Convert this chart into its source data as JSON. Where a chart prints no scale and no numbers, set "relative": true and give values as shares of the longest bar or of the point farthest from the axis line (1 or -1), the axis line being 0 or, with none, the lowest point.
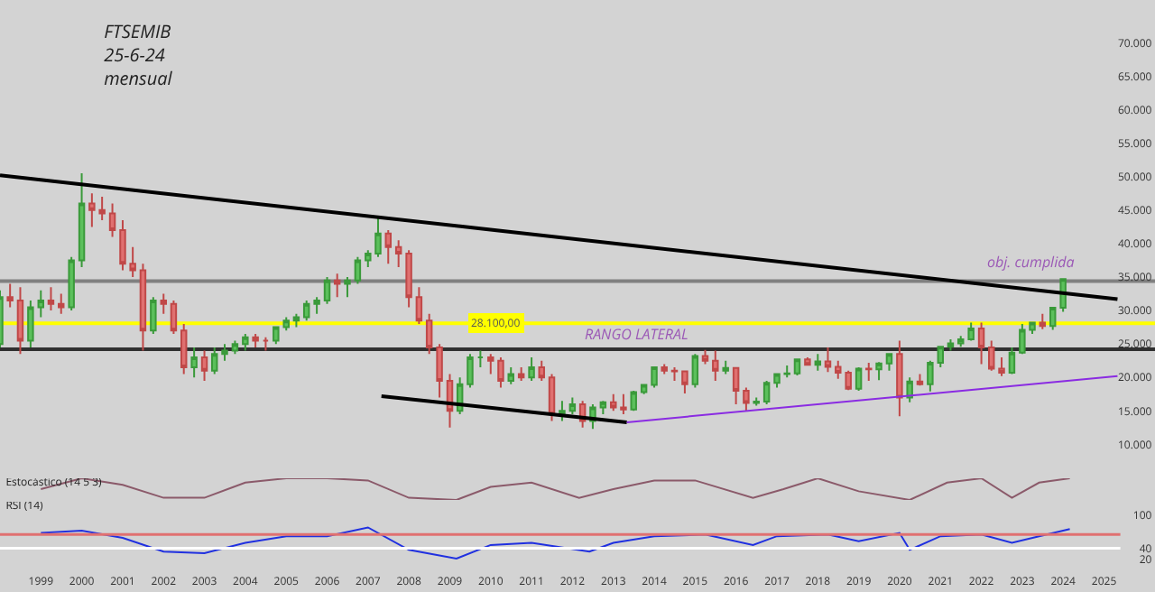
{
  "chart_data": [
    {
      "type": "candlestick",
      "title": "FTSEMIB\n25-6-24\nmensual",
      "xlim": [
        "1998-01-01",
        "2026-04-01"
      ],
      "xticks": [
        "1999",
        "2000",
        "2001",
        "2002",
        "2003",
        "2004",
        "2005",
        "2006",
        "2007",
        "2008",
        "2009",
        "2010",
        "2011",
        "2012",
        "2013",
        "2014",
        "2015",
        "2016",
        "2017",
        "2018",
        "2019",
        "2020",
        "2021",
        "2022",
        "2023",
        "2024",
        "2025"
      ],
      "ylim": [
        5200,
        76400
      ],
      "yticks": [
        {
          "value": 10000,
          "label": "10.000"
        },
        {
          "value": 15000,
          "label": "15.000"
        },
        {
          "value": 20000,
          "label": "20.000"
        },
        {
          "value": 25000,
          "label": "25.000"
        },
        {
          "value": 30000,
          "label": "30.000"
        },
        {
          "value": 35000,
          "label": "35.000"
        },
        {
          "value": 40000,
          "label": "40.000"
        },
        {
          "value": 45000,
          "label": "45.000"
        },
        {
          "value": 50000,
          "label": "50.000"
        },
        {
          "value": 55000,
          "label": "55.000"
        },
        {
          "value": 60000,
          "label": "60.000"
        },
        {
          "value": 65000,
          "label": "65.000"
        },
        {
          "value": 70000,
          "label": "70.000"
        }
      ],
      "tick_labels": "y",
      "ref_lines": [
        {
          "axis": "y",
          "value": 28100,
          "label": "28.100,00",
          "color": "#ffff00"
        },
        {
          "axis": "y",
          "value": 34400,
          "color": "#808080"
        },
        {
          "axis": "y",
          "value": 24200,
          "color": "#303030"
        }
      ],
      "annotations": [
        "RANGO LATERAL",
        "obj. cumplida"
      ],
      "series": [
        {
          "type": "line",
          "color": "#000000",
          "x": [
            "1998-01",
            "2025-05"
          ],
          "values": [
            50200,
            31700
          ]
        },
        {
          "type": "line",
          "color": "#000000",
          "x": [
            "2007-05",
            "2013-05"
          ],
          "values": [
            17200,
            13300
          ]
        },
        {
          "type": "line",
          "color": "#8a2be2",
          "x": [
            "2013-05",
            "2025-05"
          ],
          "values": [
            13300,
            20200
          ]
        },
        {
          "x": [
            "1998-01",
            "1998-04",
            "1998-07",
            "1998-10",
            "1999-01",
            "1999-04",
            "1999-07",
            "1999-10",
            "2000-01",
            "2000-04",
            "2000-07",
            "2000-10",
            "2001-01",
            "2001-04",
            "2001-07",
            "2001-10",
            "2002-01",
            "2002-04",
            "2002-07",
            "2002-10",
            "2003-01",
            "2003-04",
            "2003-07",
            "2003-10",
            "2004-01",
            "2004-04",
            "2004-07",
            "2004-10",
            "2005-01",
            "2005-04",
            "2005-07",
            "2005-10",
            "2006-01",
            "2006-04",
            "2006-07",
            "2006-10",
            "2007-01",
            "2007-04",
            "2007-07",
            "2007-10",
            "2008-01",
            "2008-04",
            "2008-07",
            "2008-10",
            "2009-01",
            "2009-04",
            "2009-07",
            "2009-10",
            "2010-01",
            "2010-04",
            "2010-07",
            "2010-10",
            "2011-01",
            "2011-04",
            "2011-07",
            "2011-10",
            "2012-01",
            "2012-04",
            "2012-07",
            "2012-10",
            "2013-01",
            "2013-04",
            "2013-07",
            "2013-10",
            "2014-01",
            "2014-04",
            "2014-07",
            "2014-10",
            "2015-01",
            "2015-04",
            "2015-07",
            "2015-10",
            "2016-01",
            "2016-04",
            "2016-07",
            "2016-10",
            "2017-01",
            "2017-04",
            "2017-07",
            "2017-10",
            "2018-01",
            "2018-04",
            "2018-07",
            "2018-10",
            "2019-01",
            "2019-04",
            "2019-07",
            "2019-10",
            "2020-01",
            "2020-04",
            "2020-07",
            "2020-10",
            "2021-01",
            "2021-04",
            "2021-07",
            "2021-10",
            "2022-01",
            "2022-04",
            "2022-07",
            "2022-10",
            "2023-01",
            "2023-04",
            "2023-07",
            "2023-10",
            "2024-01"
          ],
          "ohlc": [
            [
              25000,
              33000,
              24500,
              32000
            ],
            [
              32000,
              34000,
              30500,
              31500
            ],
            [
              31500,
              33500,
              23500,
              25500
            ],
            [
              25500,
              31500,
              24500,
              30500
            ],
            [
              30500,
              33000,
              29000,
              31500
            ],
            [
              31500,
              33500,
              30000,
              31000
            ],
            [
              31000,
              32500,
              29500,
              30500
            ],
            [
              30500,
              38000,
              30000,
              37500
            ],
            [
              37500,
              50500,
              36500,
              46000
            ],
            [
              46000,
              47500,
              42500,
              45000
            ],
            [
              45000,
              47000,
              43500,
              44500
            ],
            [
              44500,
              46000,
              41000,
              42000
            ],
            [
              42000,
              43500,
              36000,
              37000
            ],
            [
              37000,
              39500,
              35000,
              36000
            ],
            [
              36000,
              37000,
              24000,
              27000
            ],
            [
              27000,
              32000,
              26500,
              31500
            ],
            [
              31500,
              32500,
              29500,
              31000
            ],
            [
              31000,
              31500,
              26500,
              27000
            ],
            [
              27000,
              28000,
              20500,
              21500
            ],
            [
              21500,
              24500,
              20000,
              23000
            ],
            [
              23000,
              24000,
              19500,
              21000
            ],
            [
              21000,
              24500,
              20500,
              23500
            ],
            [
              23500,
              25000,
              22500,
              24000
            ],
            [
              24000,
              25500,
              23500,
              25000
            ],
            [
              25000,
              26500,
              24000,
              26000
            ],
            [
              26000,
              26500,
              24500,
              25500
            ],
            [
              25500,
              26000,
              24000,
              25500
            ],
            [
              25500,
              27500,
              25000,
              27500
            ],
            [
              27500,
              29000,
              27000,
              28500
            ],
            [
              28500,
              29500,
              27500,
              29000
            ],
            [
              29000,
              31500,
              28500,
              31000
            ],
            [
              31000,
              32000,
              29500,
              31500
            ],
            [
              31500,
              35000,
              31000,
              34500
            ],
            [
              34500,
              35500,
              32000,
              34000
            ],
            [
              34000,
              35000,
              32000,
              34500
            ],
            [
              34500,
              38000,
              34000,
              37500
            ],
            [
              37500,
              39000,
              36500,
              38500
            ],
            [
              38500,
              44000,
              38000,
              41500
            ],
            [
              41500,
              42000,
              37000,
              39500
            ],
            [
              39500,
              40500,
              36500,
              38500
            ],
            [
              38500,
              39000,
              30500,
              32000
            ],
            [
              32000,
              33500,
              28000,
              28500
            ],
            [
              28500,
              29500,
              23500,
              24500
            ],
            [
              24500,
              25000,
              17000,
              19500
            ],
            [
              19500,
              20500,
              12500,
              15000
            ],
            [
              15000,
              20000,
              14500,
              19000
            ],
            [
              19000,
              23500,
              18500,
              23000
            ],
            [
              23000,
              24000,
              21500,
              23000
            ],
            [
              23000,
              23500,
              20500,
              22500
            ],
            [
              22500,
              23000,
              18500,
              19500
            ],
            [
              19500,
              21500,
              19000,
              20500
            ],
            [
              20500,
              21500,
              19500,
              20000
            ],
            [
              20000,
              23000,
              19500,
              21500
            ],
            [
              21500,
              22500,
              19500,
              20000
            ],
            [
              20000,
              20500,
              13500,
              14500
            ],
            [
              14500,
              16500,
              13500,
              15000
            ],
            [
              15000,
              17000,
              14500,
              16000
            ],
            [
              16000,
              16500,
              12500,
              13500
            ],
            [
              13500,
              16000,
              12300,
              15500
            ],
            [
              15500,
              16500,
              14500,
              16300
            ],
            [
              16300,
              17500,
              15000,
              15500
            ],
            [
              15500,
              17500,
              14500,
              15200
            ],
            [
              15200,
              18000,
              15000,
              17800
            ],
            [
              17800,
              19000,
              17500,
              18900
            ],
            [
              18900,
              21500,
              18500,
              21500
            ],
            [
              21500,
              22000,
              20500,
              21000
            ],
            [
              21000,
              21500,
              19500,
              20900
            ],
            [
              20900,
              21000,
              17600,
              19000
            ],
            [
              19000,
              23500,
              18500,
              23200
            ],
            [
              23200,
              24100,
              22000,
              22500
            ],
            [
              22500,
              24000,
              19500,
              21000
            ],
            [
              21000,
              22500,
              20500,
              21400
            ],
            [
              21400,
              21500,
              16000,
              18000
            ],
            [
              18000,
              18500,
              15000,
              16200
            ],
            [
              16200,
              17000,
              15800,
              16400
            ],
            [
              16400,
              19500,
              16000,
              19200
            ],
            [
              19200,
              20500,
              18500,
              20500
            ],
            [
              20500,
              21800,
              20000,
              20600
            ],
            [
              20600,
              22700,
              20300,
              22700
            ],
            [
              22700,
              23000,
              21800,
              21900
            ],
            [
              21900,
              23500,
              21000,
              22400
            ],
            [
              22400,
              24500,
              20800,
              21600
            ],
            [
              21600,
              22500,
              19800,
              20700
            ],
            [
              20700,
              21000,
              18100,
              18300
            ],
            [
              18300,
              21500,
              18000,
              21300
            ],
            [
              21300,
              22200,
              19500,
              21200
            ],
            [
              21200,
              22300,
              19600,
              22100
            ],
            [
              22100,
              23500,
              21000,
              23500
            ],
            [
              23500,
              25500,
              14200,
              17000
            ],
            [
              17000,
              20000,
              16300,
              19400
            ],
            [
              19400,
              20500,
              18800,
              19000
            ],
            [
              19000,
              22500,
              17900,
              22200
            ],
            [
              22200,
              24700,
              21500,
              24600
            ],
            [
              24600,
              25700,
              24000,
              25100
            ],
            [
              25100,
              26200,
              24600,
              25700
            ],
            [
              25700,
              28200,
              25500,
              27300
            ],
            [
              27300,
              28200,
              22000,
              24500
            ],
            [
              24500,
              25500,
              21000,
              21300
            ],
            [
              21300,
              23000,
              20200,
              20700
            ],
            [
              20700,
              24500,
              20500,
              23700
            ],
            [
              23700,
              28000,
              23500,
              27100
            ],
            [
              27100,
              28300,
              26500,
              28200
            ],
            [
              28200,
              29500,
              27200,
              27700
            ],
            [
              27700,
              30500,
              27100,
              30400
            ],
            [
              30400,
              34800,
              29800,
              34700
            ]
          ]
        }
      ]
    },
    {
      "type": "line",
      "title": "Estocástico (14 5 3)",
      "relative": true,
      "tick_labels": false,
      "xlim": [
        "1998-01-01",
        "2026-04-01"
      ],
      "series": [
        {
          "color": "#8b5a6a",
          "x": [
            "1999-01",
            "2000-01",
            "2001-01",
            "2002-01",
            "2003-01",
            "2004-01",
            "2005-01",
            "2006-01",
            "2007-01",
            "2008-01",
            "2009-03",
            "2010-01",
            "2011-01",
            "2012-03",
            "2013-01",
            "2014-01",
            "2015-01",
            "2016-06",
            "2017-03",
            "2018-01",
            "2019-01",
            "2020-04",
            "2021-03",
            "2022-01",
            "2022-10",
            "2023-06",
            "2024-03"
          ],
          "values": [
            0.5,
            1,
            0.7,
            0.1,
            0.1,
            0.8,
            1,
            1,
            0.9,
            0.1,
            0,
            0.6,
            0.8,
            0.1,
            0.5,
            0.9,
            0.9,
            0.1,
            0.5,
            1,
            0.4,
            0,
            0.8,
            1,
            0.1,
            0.8,
            1
          ]
        }
      ]
    },
    {
      "type": "line",
      "title": "RSI (14)",
      "xlim": [
        "1998-01-01",
        "2026-04-01"
      ],
      "ylim": [
        -40,
        125
      ],
      "yticks": [
        20,
        40,
        100
      ],
      "xticks": [
        "1999",
        "2000",
        "2001",
        "2002",
        "2003",
        "2004",
        "2005",
        "2006",
        "2007",
        "2008",
        "2009",
        "2010",
        "2011",
        "2012",
        "2013",
        "2014",
        "2015",
        "2016",
        "2017",
        "2018",
        "2019",
        "2020",
        "2021",
        "2022",
        "2023",
        "2024",
        "2025"
      ],
      "ref_lines": [
        {
          "axis": "y",
          "value": 65,
          "color": "#e07070"
        },
        {
          "axis": "y",
          "value": 40,
          "color": "#ffffff"
        }
      ],
      "series": [
        {
          "color": "#2030e0",
          "x": [
            "1999-01",
            "2000-01",
            "2001-01",
            "2002-01",
            "2003-01",
            "2004-01",
            "2005-01",
            "2006-01",
            "2007-01",
            "2008-01",
            "2009-03",
            "2010-01",
            "2011-01",
            "2012-06",
            "2013-01",
            "2014-01",
            "2015-04",
            "2016-06",
            "2017-01",
            "2018-04",
            "2019-01",
            "2020-01",
            "2020-04",
            "2021-01",
            "2022-01",
            "2022-10",
            "2023-06",
            "2024-03"
          ],
          "values": [
            68,
            72,
            59,
            34,
            31,
            50,
            62,
            62,
            78,
            37,
            21,
            46,
            50,
            34,
            50,
            62,
            65,
            46,
            62,
            65,
            53,
            68,
            37,
            62,
            65,
            50,
            62,
            75
          ]
        }
      ]
    }
  ]
}
